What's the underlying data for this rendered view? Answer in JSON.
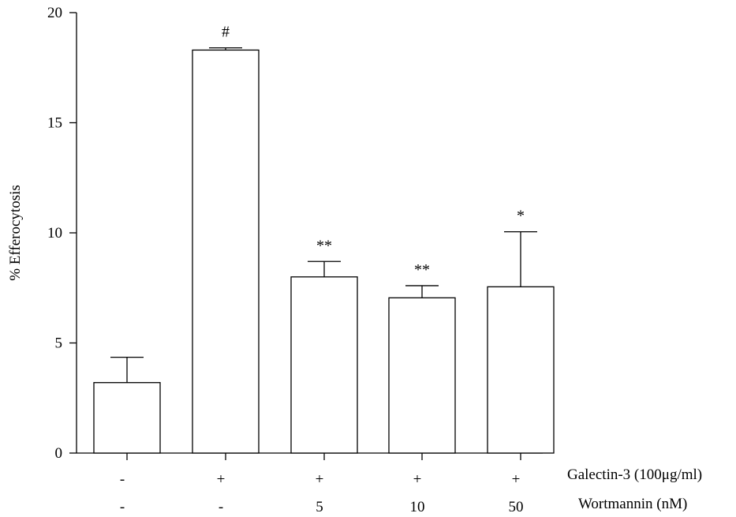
{
  "chart_data": {
    "type": "bar",
    "title": "",
    "xlabel": "",
    "ylabel": "% Efferocytosis",
    "ylim": [
      0,
      20
    ],
    "yticks": [
      0,
      5,
      10,
      15,
      20
    ],
    "grid": false,
    "bars": [
      {
        "value": 3.2,
        "error": 1.15,
        "annotation": "",
        "galectin": "-",
        "wortmannin": "-"
      },
      {
        "value": 18.3,
        "error": 0.1,
        "annotation": "#",
        "galectin": "+",
        "wortmannin": "-"
      },
      {
        "value": 8.0,
        "error": 0.7,
        "annotation": "**",
        "galectin": "+",
        "wortmannin": "5"
      },
      {
        "value": 7.05,
        "error": 0.55,
        "annotation": "**",
        "galectin": "+",
        "wortmannin": "10"
      },
      {
        "value": 7.55,
        "error": 2.5,
        "annotation": "*",
        "galectin": "+",
        "wortmannin": "50"
      }
    ],
    "row_labels": {
      "galectin": "Galectin-3 (100μg/ml)",
      "wortmannin": "Wortmannin (nM)"
    },
    "colors": {
      "bar_fill": "#ffffff",
      "stroke": "#000000"
    }
  }
}
